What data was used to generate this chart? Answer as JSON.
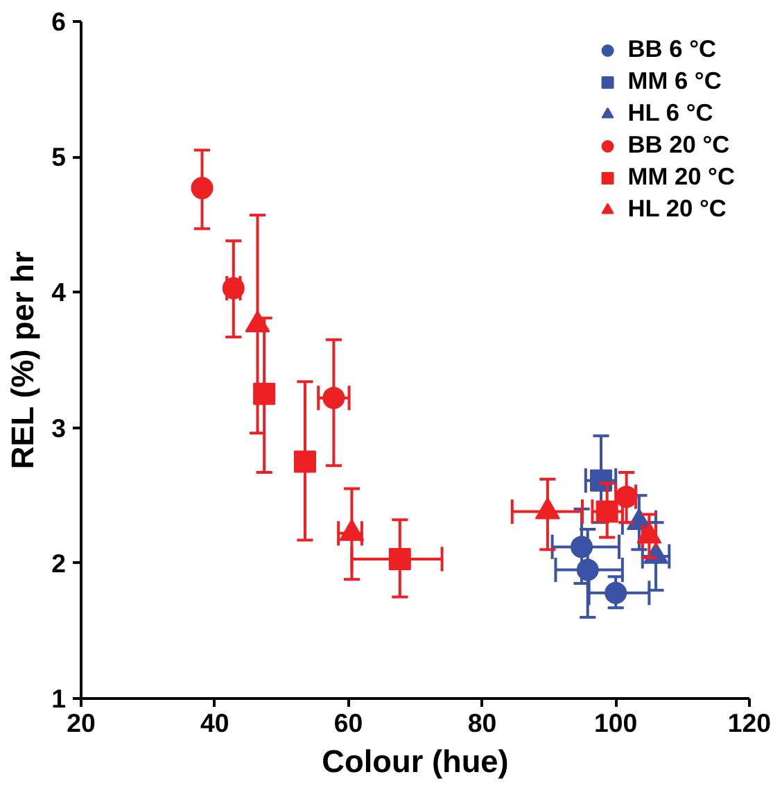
{
  "chart_data": {
    "type": "scatter",
    "xlabel": "Colour (hue)",
    "ylabel": "REL (%) per hr",
    "xlim": [
      20,
      120
    ],
    "ylim": [
      1,
      6
    ],
    "xticks": [
      20,
      40,
      60,
      80,
      100,
      120
    ],
    "yticks": [
      1,
      2,
      3,
      4,
      5,
      6
    ],
    "grid": false,
    "legend": "top right",
    "series": [
      {
        "name": "BB 6 °C",
        "color": "#3a53a4",
        "marker": "circle",
        "x": [
          94.9,
          95.8,
          100.0
        ],
        "values": [
          2.12,
          1.95,
          1.78
        ],
        "xerrors": [
          [
            90.5,
            100.5
          ],
          [
            91,
            101
          ],
          [
            96,
            105
          ]
        ],
        "errors": [
          [
            1.85,
            2.4
          ],
          [
            1.6,
            2.25
          ],
          [
            1.67,
            1.9
          ]
        ]
      },
      {
        "name": "MM 6 °C",
        "color": "#3a53a4",
        "marker": "square",
        "x": [
          97.8
        ],
        "values": [
          2.61
        ],
        "xerrors": [
          [
            95.5,
            100
          ]
        ],
        "errors": [
          [
            2.3,
            2.94
          ]
        ]
      },
      {
        "name": "HL 6 °C",
        "color": "#3a53a4",
        "marker": "triangle",
        "x": [
          106.0,
          103.5
        ],
        "values": [
          2.05,
          2.3
        ],
        "xerrors": [
          [
            104,
            108
          ],
          [
            101,
            106
          ]
        ],
        "errors": [
          [
            1.8,
            2.3
          ],
          [
            2.1,
            2.5
          ]
        ]
      },
      {
        "name": "BB 20 °C",
        "color": "#ed2024",
        "marker": "circle",
        "x": [
          38.1,
          42.8,
          57.8,
          101.6
        ],
        "values": [
          4.77,
          4.03,
          3.22,
          2.49
        ],
        "xerrors": [
          null,
          [
            41.8,
            43.8
          ],
          [
            55.5,
            60.1
          ],
          [
            100,
            103
          ]
        ],
        "errors": [
          [
            4.47,
            5.05
          ],
          [
            3.67,
            4.38
          ],
          [
            2.72,
            3.65
          ],
          [
            2.3,
            2.67
          ]
        ]
      },
      {
        "name": "MM 20 °C",
        "color": "#ed2024",
        "marker": "square",
        "x": [
          47.4,
          53.5,
          67.7,
          98.7
        ],
        "values": [
          3.25,
          2.75,
          2.03,
          2.38
        ],
        "xerrors": [
          null,
          null,
          [
            60.5,
            74
          ],
          [
            96.5,
            101
          ]
        ],
        "errors": [
          [
            2.67,
            3.81
          ],
          [
            2.17,
            3.34
          ],
          [
            1.75,
            2.32
          ],
          [
            2.19,
            2.59
          ]
        ]
      },
      {
        "name": "HL 20 °C",
        "color": "#ed2024",
        "marker": "triangle",
        "x": [
          46.4,
          60.5,
          89.8,
          105.0
        ],
        "values": [
          3.76,
          2.22,
          2.38,
          2.2
        ],
        "xerrors": [
          null,
          [
            58.5,
            62
          ],
          [
            84.5,
            95
          ],
          [
            104,
            106
          ]
        ],
        "errors": [
          [
            2.96,
            4.57
          ],
          [
            1.88,
            2.55
          ],
          [
            2.1,
            2.62
          ],
          [
            2.04,
            2.36
          ]
        ]
      }
    ]
  }
}
